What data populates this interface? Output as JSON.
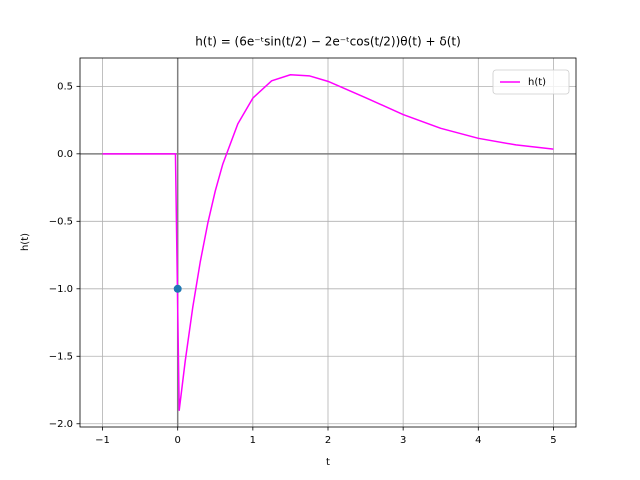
{
  "chart_data": {
    "type": "line",
    "title": "h(t) = (6e⁻ᵗsin(t/2) − 2e⁻ᵗcos(t/2))θ(t) + δ(t)",
    "x_label": "t",
    "y_label": "h(t)",
    "series": [
      {
        "name": "h(t)",
        "color": "#ff00ff",
        "x": [
          -1,
          -0.5,
          -0.03,
          0.02,
          0.1,
          0.2,
          0.3,
          0.4,
          0.5,
          0.6,
          0.8,
          1.0,
          1.25,
          1.5,
          1.75,
          2.0,
          2.5,
          3.0,
          3.5,
          4.0,
          4.5,
          5.0
        ],
        "values": [
          0,
          0,
          0,
          -1.9,
          -1.536,
          -1.139,
          -0.801,
          -0.515,
          -0.275,
          -0.076,
          0.222,
          0.413,
          0.541,
          0.586,
          0.578,
          0.537,
          0.416,
          0.291,
          0.189,
          0.115,
          0.066,
          0.035
        ]
      }
    ],
    "points": [
      {
        "x": 0,
        "y": -1,
        "color": "#1f77b4"
      }
    ],
    "axhline": 0,
    "axvline": 0,
    "xlim": [
      -1.3,
      5.3
    ],
    "ylim": [
      -2.024,
      0.71
    ],
    "xticks": [
      {
        "value": -1,
        "label": "−1"
      },
      0,
      1,
      2,
      3,
      4,
      5
    ],
    "yticks": [
      {
        "value": -2.0,
        "label": "−2.0"
      },
      {
        "value": -1.5,
        "label": "−1.5"
      },
      {
        "value": -1.0,
        "label": "−1.0"
      },
      {
        "value": -0.5,
        "label": "−0.5"
      },
      {
        "value": 0,
        "label": "0.0"
      },
      {
        "value": 0.5,
        "label": "0.5"
      }
    ],
    "grid": true,
    "legend": "upper-right"
  }
}
